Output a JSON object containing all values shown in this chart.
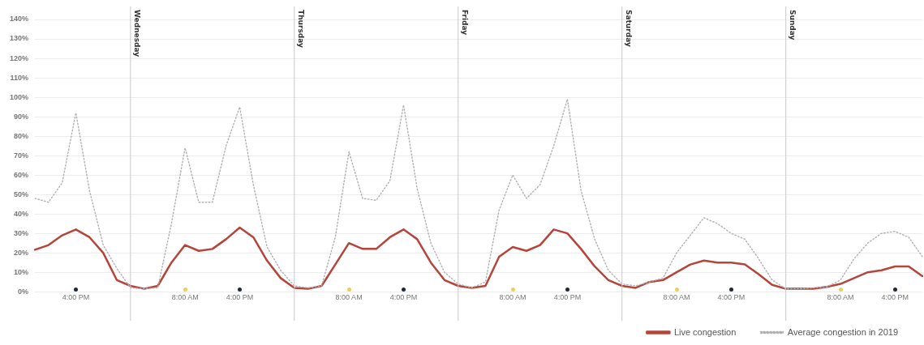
{
  "chart_data": {
    "type": "line",
    "categories": [
      null,
      null,
      null,
      "4:00 PM",
      null,
      null,
      null,
      null,
      null,
      null,
      null,
      "8:00 AM",
      null,
      null,
      null,
      "4:00 PM",
      null,
      null,
      null,
      null,
      null,
      null,
      null,
      "8:00 AM",
      null,
      null,
      null,
      "4:00 PM",
      null,
      null,
      null,
      null,
      null,
      null,
      null,
      "8:00 AM",
      null,
      null,
      null,
      "4:00 PM",
      null,
      null,
      null,
      null,
      null,
      null,
      null,
      "8:00 AM",
      null,
      null,
      null,
      "4:00 PM",
      null,
      null,
      null,
      null,
      null,
      null,
      null,
      "8:00 AM",
      null,
      null,
      null,
      "4:00 PM",
      null,
      null
    ],
    "ylim": [
      0,
      140
    ],
    "yticks": [
      {
        "value": 0,
        "label": "0%"
      },
      {
        "value": 10,
        "label": "10%"
      },
      {
        "value": 20,
        "label": "20%"
      },
      {
        "value": 30,
        "label": "30%"
      },
      {
        "value": 40,
        "label": "40%"
      },
      {
        "value": 50,
        "label": "50%"
      },
      {
        "value": 60,
        "label": "60%"
      },
      {
        "value": 70,
        "label": "70%"
      },
      {
        "value": 80,
        "label": "80%"
      },
      {
        "value": 90,
        "label": "90%"
      },
      {
        "value": 100,
        "label": "100%"
      },
      {
        "value": 110,
        "label": "110%"
      },
      {
        "value": 120,
        "label": "120%"
      },
      {
        "value": 130,
        "label": "130%"
      },
      {
        "value": 140,
        "label": "140%"
      }
    ],
    "grid": true,
    "legend": "bottom right",
    "annotations": [
      "Wednesday",
      "Thursday",
      "Friday",
      "Saturday",
      "Sunday"
    ],
    "series": [
      {
        "name": "Average congestion in 2019",
        "color": "#b0b0b0",
        "line_style": "dotted",
        "values": [
          48,
          46,
          56,
          92,
          52,
          24,
          12,
          2,
          1.5,
          2,
          35,
          74,
          46,
          46,
          75,
          95,
          55,
          23,
          11,
          3,
          2,
          3,
          28,
          72,
          48,
          47,
          57,
          96,
          53,
          25,
          10,
          4,
          2,
          5,
          42,
          60,
          48,
          55,
          75,
          99,
          52,
          27,
          11,
          4,
          3,
          5,
          7,
          20,
          29,
          38,
          35,
          30,
          27,
          17,
          6,
          1.5,
          1.5,
          2,
          2.5,
          6,
          17,
          25,
          30,
          31,
          28,
          18
        ]
      },
      {
        "name": "Live congestion",
        "color": "#b5443b",
        "values": [
          21.6,
          24,
          29,
          32,
          28,
          20,
          6,
          3,
          1.5,
          3,
          15,
          24,
          21,
          22,
          27,
          33,
          28,
          16,
          7,
          2,
          1.5,
          3,
          14,
          25,
          22,
          22,
          28,
          32,
          27,
          15,
          6,
          3,
          2,
          3,
          18,
          23,
          21,
          24,
          32,
          30,
          22,
          13,
          6,
          3,
          2,
          5,
          6,
          10,
          14,
          16,
          15,
          15,
          14,
          9,
          3.5,
          1.5,
          1.5,
          1.5,
          2.5,
          4,
          7,
          10,
          11,
          13,
          13,
          8
        ]
      }
    ]
  }
}
